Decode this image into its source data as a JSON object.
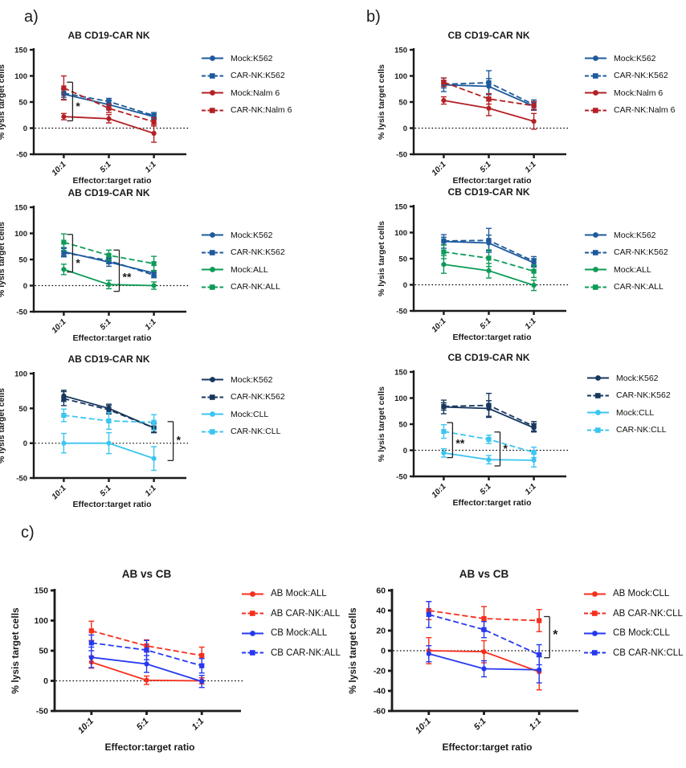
{
  "figure": {
    "panel_a_label": "a)",
    "panel_b_label": "b)",
    "panel_c_label": "c)"
  },
  "chart_data": [
    {
      "id": "a1",
      "panel": "a",
      "type": "line",
      "title": "AB CD19-CAR NK",
      "xlabel": "Effector:target ratio",
      "ylabel": "% lysis target cells",
      "categories": [
        "10:1",
        "5:1",
        "1:1"
      ],
      "ylim": [
        -50,
        150
      ],
      "yticks": [
        150,
        100,
        50,
        0,
        -50
      ],
      "zero_line": true,
      "legend_position": "right",
      "series": [
        {
          "name": "Mock:K562",
          "color": "#1e5a9c",
          "dashed": false,
          "marker": "circle",
          "values": [
            65,
            45,
            22
          ],
          "errors": [
            10,
            8,
            5
          ]
        },
        {
          "name": "CAR-NK:K562",
          "color": "#1e5a9c",
          "dashed": true,
          "marker": "square",
          "values": [
            67,
            51,
            24
          ],
          "errors": [
            8,
            6,
            6
          ]
        },
        {
          "name": "Mock:Nalm 6",
          "color": "#b42025",
          "dashed": false,
          "marker": "circle",
          "values": [
            22,
            18,
            -10
          ],
          "errors": [
            6,
            8,
            17
          ]
        },
        {
          "name": "CAR-NK:Nalm 6",
          "color": "#b42025",
          "dashed": true,
          "marker": "square",
          "values": [
            77,
            38,
            12
          ],
          "errors": [
            23,
            8,
            8
          ]
        }
      ],
      "significance": [
        {
          "at_category": "10:1",
          "label": "*",
          "y_top": 88,
          "y_bottom": 14,
          "label_y": 42,
          "dx": 11
        }
      ]
    },
    {
      "id": "b1",
      "panel": "b",
      "type": "line",
      "title": "CB CD19-CAR NK",
      "xlabel": "Effector:target ratio",
      "ylabel": "% lysis target cells",
      "categories": [
        "10:1",
        "5:1",
        "1:1"
      ],
      "ylim": [
        -50,
        150
      ],
      "yticks": [
        150,
        100,
        50,
        0,
        -50
      ],
      "zero_line": true,
      "legend_position": "right",
      "series": [
        {
          "name": "Mock:K562",
          "color": "#1e5a9c",
          "dashed": false,
          "marker": "circle",
          "values": [
            83,
            80,
            42
          ],
          "errors": [
            13,
            15,
            8
          ]
        },
        {
          "name": "CAR-NK:K562",
          "color": "#1e5a9c",
          "dashed": true,
          "marker": "square",
          "values": [
            84,
            87,
            45
          ],
          "errors": [
            7,
            23,
            9
          ]
        },
        {
          "name": "Mock:Nalm 6",
          "color": "#b42025",
          "dashed": false,
          "marker": "circle",
          "values": [
            53,
            38,
            13
          ],
          "errors": [
            7,
            14,
            15
          ]
        },
        {
          "name": "CAR-NK:Nalm 6",
          "color": "#b42025",
          "dashed": true,
          "marker": "square",
          "values": [
            88,
            56,
            43
          ],
          "errors": [
            8,
            10,
            8
          ]
        }
      ],
      "significance": []
    },
    {
      "id": "a2",
      "panel": "a",
      "type": "line",
      "title": "AB CD19-CAR NK",
      "xlabel": "Effector:target ratio",
      "ylabel": "% lysis target cells",
      "categories": [
        "10:1",
        "5:1",
        "1:1"
      ],
      "ylim": [
        -50,
        150
      ],
      "yticks": [
        150,
        100,
        50,
        0,
        -50
      ],
      "zero_line": true,
      "legend_position": "right",
      "series": [
        {
          "name": "Mock:K562",
          "color": "#1e5a9c",
          "dashed": false,
          "marker": "circle",
          "values": [
            65,
            45,
            24
          ],
          "errors": [
            8,
            8,
            5
          ]
        },
        {
          "name": "CAR-NK:K562",
          "color": "#1e5a9c",
          "dashed": true,
          "marker": "square",
          "values": [
            63,
            48,
            20
          ],
          "errors": [
            8,
            6,
            5
          ]
        },
        {
          "name": "Mock:ALL",
          "color": "#0d9b57",
          "dashed": false,
          "marker": "circle",
          "values": [
            31,
            2,
            0
          ],
          "errors": [
            10,
            8,
            7
          ]
        },
        {
          "name": "CAR-NK:ALL",
          "color": "#0d9b57",
          "dashed": true,
          "marker": "square",
          "values": [
            83,
            58,
            42
          ],
          "errors": [
            16,
            10,
            14
          ]
        }
      ],
      "significance": [
        {
          "at_category": "10:1",
          "label": "*",
          "y_top": 98,
          "y_bottom": 26,
          "label_y": 44,
          "dx": 11
        },
        {
          "at_category": "5:1",
          "label": "**",
          "y_top": 68,
          "y_bottom": -11,
          "label_y": 17,
          "dx": 13
        }
      ]
    },
    {
      "id": "b2",
      "panel": "b",
      "type": "line",
      "title": "CB CD19-CAR NK",
      "xlabel": "Effector:target ratio",
      "ylabel": "% lysis target cells",
      "categories": [
        "10:1",
        "5:1",
        "1:1"
      ],
      "ylim": [
        -50,
        150
      ],
      "yticks": [
        150,
        100,
        50,
        0,
        -50
      ],
      "zero_line": true,
      "legend_position": "right",
      "series": [
        {
          "name": "Mock:K562",
          "color": "#1e5a9c",
          "dashed": false,
          "marker": "circle",
          "values": [
            83,
            80,
            42
          ],
          "errors": [
            13,
            15,
            8
          ]
        },
        {
          "name": "CAR-NK:K562",
          "color": "#1e5a9c",
          "dashed": true,
          "marker": "square",
          "values": [
            84,
            85,
            45
          ],
          "errors": [
            7,
            23,
            9
          ]
        },
        {
          "name": "Mock:ALL",
          "color": "#0d9b57",
          "dashed": false,
          "marker": "circle",
          "values": [
            39,
            27,
            -1
          ],
          "errors": [
            17,
            14,
            10
          ]
        },
        {
          "name": "CAR-NK:ALL",
          "color": "#0d9b57",
          "dashed": true,
          "marker": "square",
          "values": [
            63,
            51,
            26
          ],
          "errors": [
            13,
            16,
            12
          ]
        }
      ],
      "significance": []
    },
    {
      "id": "a3",
      "panel": "a",
      "type": "line",
      "title": "AB CD19-CAR NK",
      "xlabel": "Effector:target ratio",
      "ylabel": "% lysis target cells",
      "categories": [
        "10:1",
        "5:1",
        "1:1"
      ],
      "ylim": [
        -50,
        100
      ],
      "yticks": [
        100,
        50,
        0,
        -50
      ],
      "zero_line": true,
      "legend_position": "right",
      "series": [
        {
          "name": "Mock:K562",
          "color": "#17375e",
          "dashed": false,
          "marker": "circle",
          "values": [
            68,
            50,
            22
          ],
          "errors": [
            8,
            6,
            6
          ]
        },
        {
          "name": "CAR-NK:K562",
          "color": "#17375e",
          "dashed": true,
          "marker": "square",
          "values": [
            64,
            48,
            22
          ],
          "errors": [
            10,
            6,
            7
          ]
        },
        {
          "name": "Mock:CLL",
          "color": "#3bc5f0",
          "dashed": false,
          "marker": "circle",
          "values": [
            0,
            0,
            -22
          ],
          "errors": [
            14,
            15,
            17
          ]
        },
        {
          "name": "CAR-NK:CLL",
          "color": "#3bc5f0",
          "dashed": true,
          "marker": "square",
          "values": [
            40,
            32,
            30
          ],
          "errors": [
            9,
            12,
            11
          ]
        }
      ],
      "significance": [
        {
          "at_category": "1:1",
          "label": "*",
          "y_top": 31,
          "y_bottom": -25,
          "label_y": 5,
          "dx": 24
        }
      ]
    },
    {
      "id": "b3",
      "panel": "b",
      "type": "line",
      "title": "CB CD19-CAR NK",
      "xlabel": "Effector:target ratio",
      "ylabel": "% lysis target cells",
      "categories": [
        "10:1",
        "5:1",
        "1:1"
      ],
      "ylim": [
        -50,
        150
      ],
      "yticks": [
        150,
        100,
        50,
        0,
        -50
      ],
      "zero_line": true,
      "legend_position": "right",
      "series": [
        {
          "name": "Mock:K562",
          "color": "#17375e",
          "dashed": false,
          "marker": "circle",
          "values": [
            83,
            80,
            43
          ],
          "errors": [
            13,
            15,
            8
          ]
        },
        {
          "name": "CAR-NK:K562",
          "color": "#17375e",
          "dashed": true,
          "marker": "square",
          "values": [
            84,
            86,
            46
          ],
          "errors": [
            7,
            23,
            9
          ]
        },
        {
          "name": "Mock:CLL",
          "color": "#3bc5f0",
          "dashed": false,
          "marker": "circle",
          "values": [
            -5,
            -18,
            -19
          ],
          "errors": [
            8,
            8,
            13
          ]
        },
        {
          "name": "CAR-NK:CLL",
          "color": "#3bc5f0",
          "dashed": true,
          "marker": "square",
          "values": [
            36,
            21,
            -4
          ],
          "errors": [
            13,
            8,
            10
          ]
        }
      ],
      "significance": [
        {
          "at_category": "10:1",
          "label": "**",
          "y_top": 53,
          "y_bottom": -14,
          "label_y": 14,
          "dx": 11
        },
        {
          "at_category": "5:1",
          "label": "*",
          "y_top": 35,
          "y_bottom": -30,
          "label_y": 4,
          "dx": 14
        }
      ]
    },
    {
      "id": "c1",
      "panel": "c",
      "type": "line",
      "title": "AB vs CB",
      "xlabel": "Effector:target ratio",
      "ylabel": "% lysis target cells",
      "categories": [
        "10:1",
        "5:1",
        "1:1"
      ],
      "ylim": [
        -50,
        150
      ],
      "yticks": [
        150,
        100,
        50,
        0,
        -50
      ],
      "zero_line": true,
      "legend_position": "right",
      "series": [
        {
          "name": "AB Mock:ALL",
          "color": "#f62e1c",
          "dashed": false,
          "marker": "circle",
          "values": [
            31,
            1,
            0
          ],
          "errors": [
            10,
            7,
            5
          ]
        },
        {
          "name": "AB CAR-NK:ALL",
          "color": "#f62e1c",
          "dashed": true,
          "marker": "square",
          "values": [
            83,
            58,
            42
          ],
          "errors": [
            16,
            10,
            14
          ]
        },
        {
          "name": "CB Mock:ALL",
          "color": "#2539f1",
          "dashed": false,
          "marker": "circle",
          "values": [
            39,
            28,
            -1
          ],
          "errors": [
            17,
            14,
            10
          ]
        },
        {
          "name": "CB CAR-NK:ALL",
          "color": "#2539f1",
          "dashed": true,
          "marker": "square",
          "values": [
            63,
            51,
            25
          ],
          "errors": [
            13,
            16,
            12
          ]
        }
      ],
      "significance": []
    },
    {
      "id": "c2",
      "panel": "c",
      "type": "line",
      "title": "AB vs CB",
      "xlabel": "Effector:target ratio",
      "ylabel": "% lysis target cells",
      "categories": [
        "10:1",
        "5:1",
        "1:1"
      ],
      "ylim": [
        -60,
        60
      ],
      "yticks": [
        60,
        40,
        20,
        0,
        -20,
        -40,
        -60
      ],
      "zero_line": true,
      "legend_position": "right",
      "series": [
        {
          "name": "AB Mock:CLL",
          "color": "#f62e1c",
          "dashed": false,
          "marker": "circle",
          "values": [
            0,
            -1,
            -21
          ],
          "errors": [
            13,
            11,
            18
          ]
        },
        {
          "name": "AB CAR-NK:CLL",
          "color": "#f62e1c",
          "dashed": true,
          "marker": "square",
          "values": [
            40,
            32,
            30
          ],
          "errors": [
            9,
            12,
            11
          ]
        },
        {
          "name": "CB Mock:CLL",
          "color": "#2539f1",
          "dashed": false,
          "marker": "circle",
          "values": [
            -3,
            -18,
            -19
          ],
          "errors": [
            8,
            8,
            13
          ]
        },
        {
          "name": "CB CAR-NK:CLL",
          "color": "#2539f1",
          "dashed": true,
          "marker": "square",
          "values": [
            36,
            21,
            -4
          ],
          "errors": [
            13,
            8,
            10
          ]
        }
      ],
      "significance": [
        {
          "at_category": "1:1",
          "label": "*",
          "y_top": 34,
          "y_bottom": -7,
          "label_y": 16,
          "dx": 13
        }
      ]
    }
  ]
}
